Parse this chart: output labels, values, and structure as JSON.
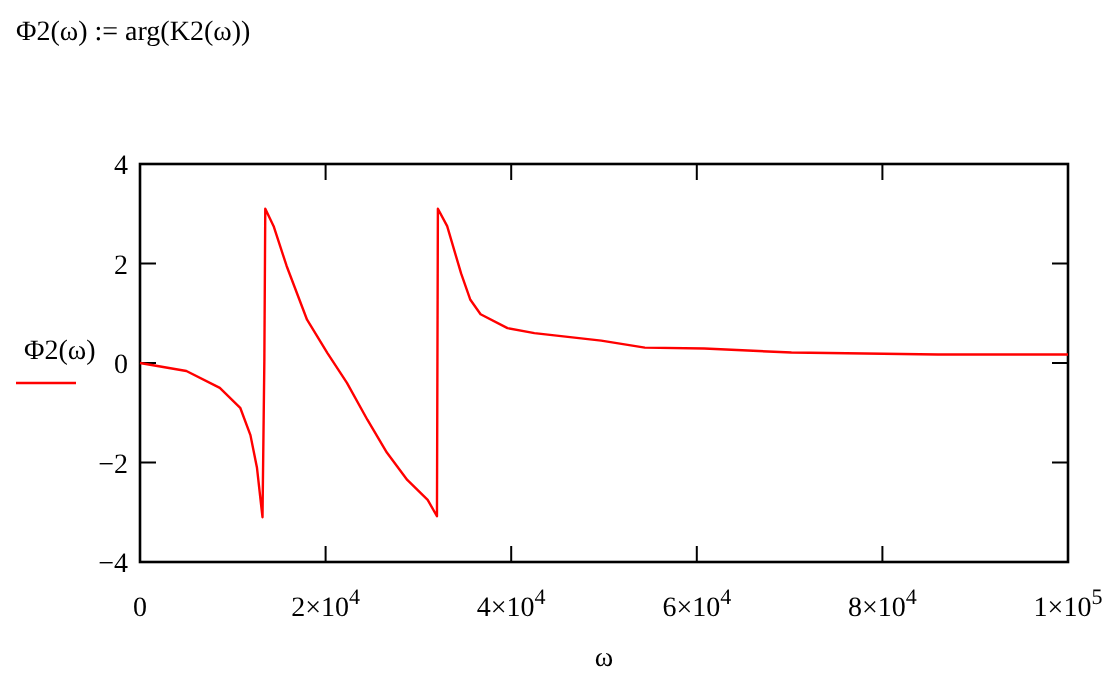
{
  "chart_data": {
    "type": "line",
    "title": "Φ2(ω) := arg(K2(ω))",
    "xlabel": "ω",
    "legend": "left",
    "xlim": [
      0,
      100000
    ],
    "ylim": [
      -4,
      4
    ],
    "xticks": [
      0,
      {
        "value": 20000,
        "label": "2×10$^{4}$"
      },
      {
        "value": 40000,
        "label": "4×10$^{4}$"
      },
      {
        "value": 60000,
        "label": "6×10$^{4}$"
      },
      {
        "value": 80000,
        "label": "8×10$^{4}$"
      },
      {
        "value": 100000,
        "label": "1×10$^{5}$"
      }
    ],
    "yticks": [
      {
        "value": -4,
        "label": "−4"
      },
      {
        "value": -2,
        "label": "−2"
      },
      0,
      2,
      4
    ],
    "grid": false,
    "series": [
      {
        "name": "Φ2(ω)",
        "color": "#ff0000",
        "x": [
          0,
          5000,
          8600,
          10800,
          11900,
          12600,
          13200,
          13400,
          13500,
          14400,
          15800,
          18000,
          20200,
          22300,
          24500,
          26600,
          28800,
          31000,
          32000,
          32100,
          33100,
          34600,
          35600,
          36700,
          39600,
          42500,
          49700,
          54400,
          60800,
          70200,
          86000,
          100000
        ],
        "values": [
          0,
          -0.16,
          -0.5,
          -0.9,
          -1.45,
          -2.1,
          -3.1,
          0.05,
          3.1,
          2.75,
          1.95,
          0.87,
          0.2,
          -0.4,
          -1.14,
          -1.8,
          -2.35,
          -2.75,
          -3.08,
          3.1,
          2.75,
          1.8,
          1.27,
          0.98,
          0.7,
          0.6,
          0.45,
          0.31,
          0.29,
          0.21,
          0.17,
          0.17
        ]
      }
    ]
  }
}
